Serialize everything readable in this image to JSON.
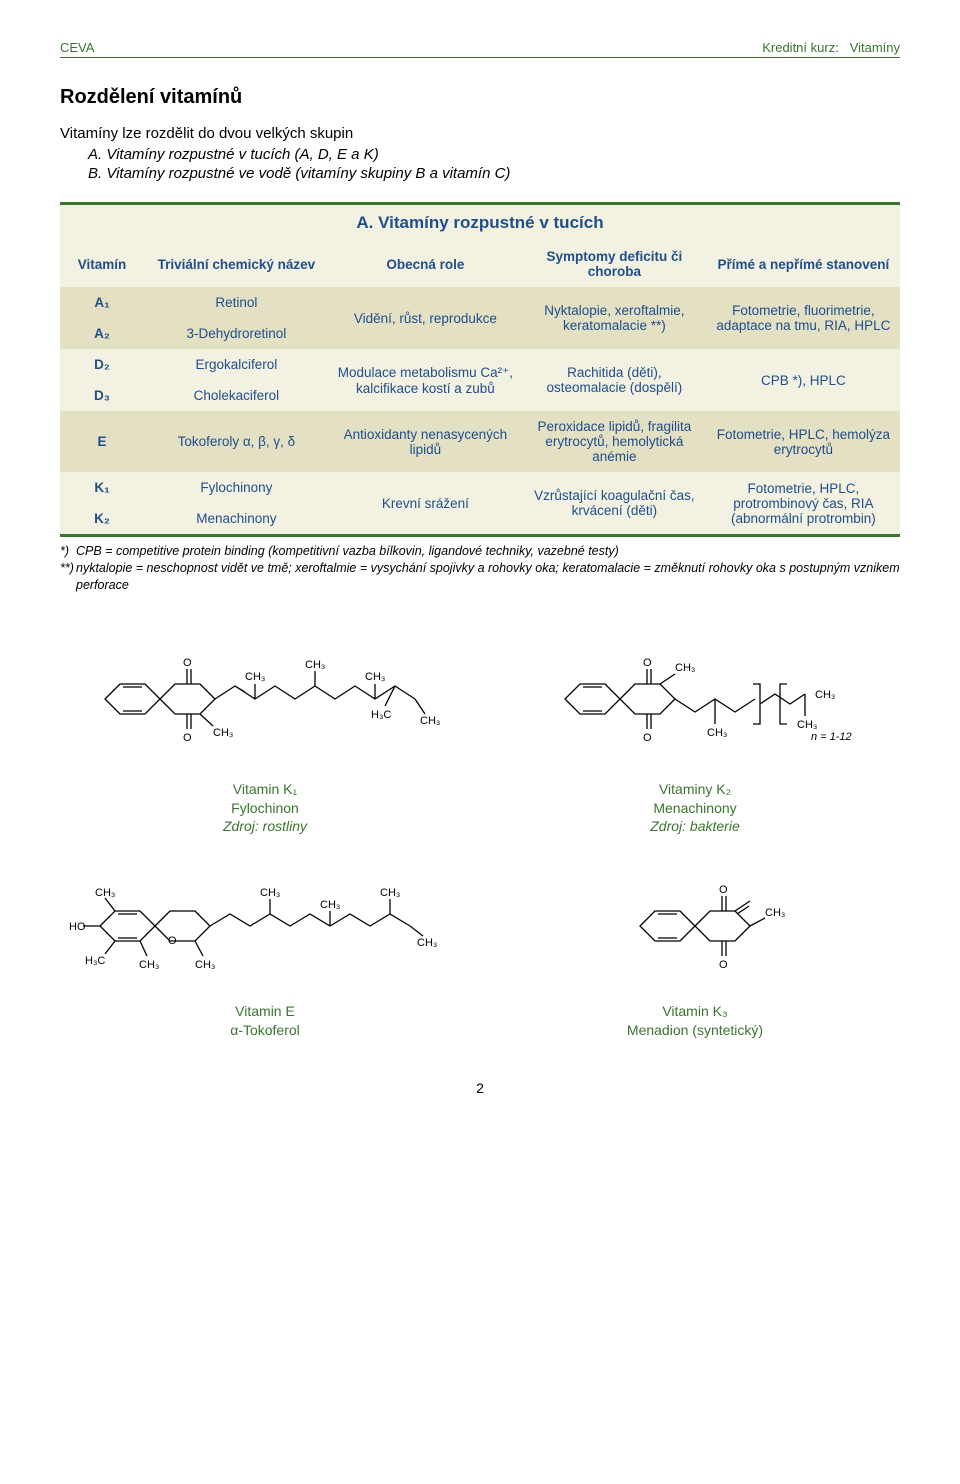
{
  "header": {
    "left": "CEVA",
    "right_prefix": "Kreditní kurz:",
    "right_value": "Vitamíny"
  },
  "section_title": "Rozdělení vitamínů",
  "intro_line": "Vitamíny lze rozdělit do dvou velkých skupin",
  "intro_items": [
    {
      "label": "A.",
      "text": "Vitamíny rozpustné v tucích (A, D, E a K)"
    },
    {
      "label": "B.",
      "text": "Vitamíny rozpustné ve vodě (vitamíny skupiny B a vitamín C)"
    }
  ],
  "table": {
    "title": "A. Vitamíny rozpustné v tucích",
    "columns": [
      "Vitamín",
      "Triviální chemický název",
      "Obecná role",
      "Symptomy deficitu či choroba",
      "Přímé a nepřímé stanovení"
    ],
    "col_widths": [
      "10%",
      "22%",
      "23%",
      "22%",
      "23%"
    ],
    "groups": [
      {
        "band": "dark",
        "rows": [
          {
            "vitamin": "A₁",
            "name": "Retinol"
          },
          {
            "vitamin": "A₂",
            "name": "3-Dehydroretinol"
          }
        ],
        "role": "Vidění, růst, reprodukce",
        "symptoms": "Nyktalopie, xeroftalmie, keratomalacie **)",
        "methods": "Fotometrie, fluorimetrie, adaptace na tmu, RIA, HPLC"
      },
      {
        "band": "light",
        "rows": [
          {
            "vitamin": "D₂",
            "name": "Ergokalciferol"
          },
          {
            "vitamin": "D₃",
            "name": "Cholekaciferol"
          }
        ],
        "role": "Modulace metabolismu Ca²⁺, kalcifikace kostí a zubů",
        "symptoms": "Rachitida (děti), osteomalacie (dospělí)",
        "methods": "CPB *), HPLC"
      },
      {
        "band": "dark",
        "rows": [
          {
            "vitamin": "E",
            "name": "Tokoferoly α, β, γ, δ"
          }
        ],
        "role": "Antioxidanty nenasycených lipidů",
        "symptoms": "Peroxidace lipidů, fragilita erytrocytů, hemolytická anémie",
        "methods": "Fotometrie, HPLC, hemolýza erytrocytů"
      },
      {
        "band": "light",
        "rows": [
          {
            "vitamin": "K₁",
            "name": "Fylochinony"
          },
          {
            "vitamin": "K₂",
            "name": "Menachinony"
          }
        ],
        "role": "Krevní srážení",
        "symptoms": "Vzrůstající koagulační čas, krvácení (děti)",
        "methods": "Fotometrie, HPLC, protrombinový čas, RIA (abnormální protrombin)"
      }
    ]
  },
  "footnotes": [
    {
      "mark": "*)",
      "text": "CPB = competitive protein binding  (kompetitivní vazba bílkovin, ligandové techniky, vazebné testy)"
    },
    {
      "mark": "**)",
      "text": "nyktalopie = neschopnost vidět ve tmě; xeroftalmie = vysychání spojivky a rohovky oka; keratomalacie = změknutí rohovky oka s postupným vznikem perforace"
    }
  ],
  "molecules": [
    {
      "name": "Vitamin K₁",
      "sub": "Fylochinon",
      "source": "Zdroj: rostliny"
    },
    {
      "name": "Vitaminy K₂",
      "sub": "Menachinony",
      "source": "Zdroj: bakterie",
      "extra": "n = 1-12"
    },
    {
      "name": "Vitamin E",
      "sub": "α-Tokoferol",
      "source": ""
    },
    {
      "name": "Vitamin K₃",
      "sub": "Menadion (syntetický)",
      "source": ""
    }
  ],
  "page_number": "2",
  "colors": {
    "brand_green": "#3a752f",
    "table_blue": "#204f8a",
    "band_light": "#f3f1e1",
    "band_dark": "#e3e0c4"
  }
}
